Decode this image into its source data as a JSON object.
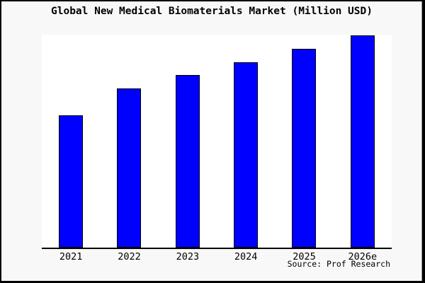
{
  "chart_data": {
    "type": "bar",
    "title": "Global New Medical Biomaterials Market (Million USD)",
    "categories": [
      "2021",
      "2022",
      "2023",
      "2024",
      "2025",
      "2026e"
    ],
    "values_relative_pct_of_tallest": [
      62.5,
      75,
      81.3,
      87.5,
      93.7,
      100
    ],
    "value_axis_note": "y-axis is unlabeled (no ticks or gridlines); values are bar heights relative to the tallest bar (2026e = 100)",
    "xlabel": "",
    "ylabel": "",
    "grid": false,
    "legend": "none",
    "bar_color": "#0000ff",
    "bar_edge_color": "#000000",
    "plot_background": "#ffffff",
    "figure_background": "#f8f8f8",
    "frame_color": "#000000",
    "source_label": "Source: Prof Research"
  }
}
